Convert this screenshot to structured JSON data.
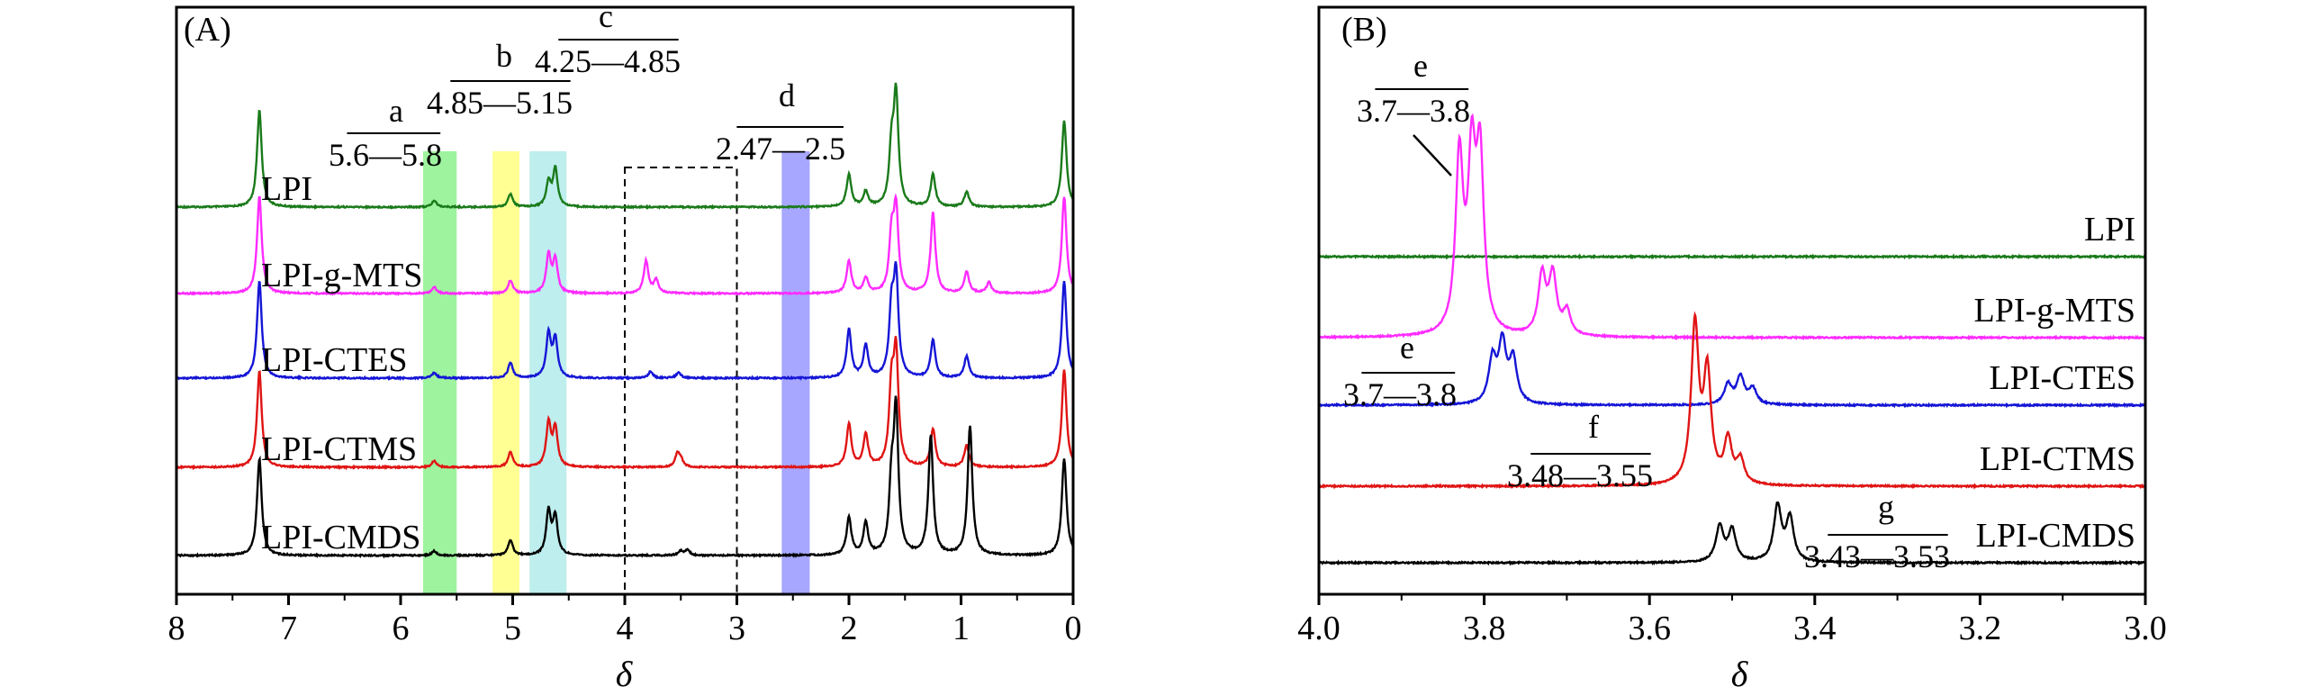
{
  "chart_data": [
    {
      "id": "A",
      "type": "line",
      "panel_label": "(A)",
      "xlabel": "δ",
      "ylabel": "",
      "xlim": [
        8,
        0
      ],
      "x_reversed": true,
      "x_ticks": [
        8,
        7,
        6,
        5,
        4,
        3,
        2,
        1,
        0
      ],
      "x_tick_labels": [
        "8",
        "7",
        "6",
        "5",
        "4",
        "3",
        "2",
        "1",
        "0"
      ],
      "series": [
        {
          "name": "LPI",
          "color": "#1a7a1a",
          "peaks": [
            [
              7.26,
              0.9
            ],
            [
              5.7,
              0.06
            ],
            [
              5.02,
              0.12
            ],
            [
              4.68,
              0.22
            ],
            [
              4.62,
              0.35
            ],
            [
              2.0,
              0.3
            ],
            [
              1.85,
              0.14
            ],
            [
              1.62,
              0.5
            ],
            [
              1.58,
              1.0
            ],
            [
              1.25,
              0.3
            ],
            [
              0.95,
              0.14
            ],
            [
              0.08,
              0.8
            ]
          ]
        },
        {
          "name": "LPI-g-MTS",
          "color": "#ff2bff",
          "peaks": [
            [
              7.26,
              0.9
            ],
            [
              5.7,
              0.06
            ],
            [
              5.02,
              0.12
            ],
            [
              4.68,
              0.35
            ],
            [
              4.62,
              0.3
            ],
            [
              3.81,
              0.3
            ],
            [
              3.72,
              0.12
            ],
            [
              2.0,
              0.3
            ],
            [
              1.85,
              0.14
            ],
            [
              1.62,
              0.5
            ],
            [
              1.58,
              0.75
            ],
            [
              1.25,
              0.75
            ],
            [
              0.95,
              0.2
            ],
            [
              0.75,
              0.1
            ],
            [
              0.08,
              0.9
            ]
          ]
        },
        {
          "name": "LPI-CTES",
          "color": "#1515d6",
          "peaks": [
            [
              7.26,
              0.9
            ],
            [
              5.7,
              0.05
            ],
            [
              5.02,
              0.14
            ],
            [
              4.68,
              0.4
            ],
            [
              4.62,
              0.35
            ],
            [
              3.77,
              0.06
            ],
            [
              3.52,
              0.05
            ],
            [
              2.0,
              0.45
            ],
            [
              1.85,
              0.3
            ],
            [
              1.62,
              0.6
            ],
            [
              1.58,
              0.9
            ],
            [
              1.25,
              0.35
            ],
            [
              0.95,
              0.2
            ],
            [
              0.08,
              0.9
            ]
          ]
        },
        {
          "name": "LPI-CTMS",
          "color": "#e01414",
          "peaks": [
            [
              7.26,
              0.9
            ],
            [
              5.7,
              0.06
            ],
            [
              5.02,
              0.14
            ],
            [
              4.68,
              0.4
            ],
            [
              4.62,
              0.35
            ],
            [
              3.53,
              0.12
            ],
            [
              3.5,
              0.06
            ],
            [
              2.0,
              0.4
            ],
            [
              1.85,
              0.3
            ],
            [
              1.62,
              0.7
            ],
            [
              1.58,
              1.0
            ],
            [
              1.25,
              0.35
            ],
            [
              0.95,
              0.2
            ],
            [
              0.08,
              0.9
            ]
          ]
        },
        {
          "name": "LPI-CMDS",
          "color": "#000000",
          "peaks": [
            [
              7.26,
              0.9
            ],
            [
              5.7,
              0.04
            ],
            [
              5.02,
              0.14
            ],
            [
              4.68,
              0.4
            ],
            [
              4.62,
              0.35
            ],
            [
              3.5,
              0.04
            ],
            [
              3.44,
              0.05
            ],
            [
              2.0,
              0.35
            ],
            [
              1.85,
              0.3
            ],
            [
              1.62,
              0.6
            ],
            [
              1.58,
              1.3
            ],
            [
              1.27,
              1.1
            ],
            [
              0.92,
              1.2
            ],
            [
              0.08,
              0.9
            ]
          ]
        }
      ],
      "regions": [
        {
          "letter": "a",
          "range_label": "5.6—5.8",
          "from": 5.8,
          "to": 5.5,
          "color": "#7df07d"
        },
        {
          "letter": "b",
          "range_label": "4.85—5.15",
          "from": 5.18,
          "to": 4.94,
          "color": "#ffff70"
        },
        {
          "letter": "c",
          "range_label": "4.25—4.85",
          "from": 4.85,
          "to": 4.52,
          "color": "#a8e8e8"
        },
        {
          "letter": "d",
          "range_label": "2.47—2.5",
          "from": 2.6,
          "to": 2.35,
          "color": "#8a8aff"
        }
      ],
      "dashed_box": {
        "from": 4.0,
        "to": 3.0
      }
    },
    {
      "id": "B",
      "type": "line",
      "panel_label": "(B)",
      "xlabel": "δ",
      "ylabel": "",
      "xlim": [
        4.0,
        3.0
      ],
      "x_reversed": true,
      "x_ticks": [
        4.0,
        3.8,
        3.6,
        3.4,
        3.2,
        3.0
      ],
      "x_tick_labels": [
        "4.0",
        "3.8",
        "3.6",
        "3.4",
        "3.2",
        "3.0"
      ],
      "series": [
        {
          "name": "LPI",
          "color": "#1a7a1a",
          "peaks": []
        },
        {
          "name": "LPI-g-MTS",
          "color": "#ff2bff",
          "peaks": [
            [
              3.83,
              0.88
            ],
            [
              3.815,
              0.82
            ],
            [
              3.805,
              0.85
            ],
            [
              3.73,
              0.3
            ],
            [
              3.717,
              0.3
            ],
            [
              3.7,
              0.12
            ]
          ]
        },
        {
          "name": "LPI-CTES",
          "color": "#1515d6",
          "peaks": [
            [
              3.79,
              0.22
            ],
            [
              3.778,
              0.3
            ],
            [
              3.765,
              0.22
            ],
            [
              3.505,
              0.1
            ],
            [
              3.49,
              0.14
            ],
            [
              3.475,
              0.08
            ]
          ]
        },
        {
          "name": "LPI-CTMS",
          "color": "#e01414",
          "peaks": [
            [
              3.545,
              0.8
            ],
            [
              3.53,
              0.55
            ],
            [
              3.505,
              0.22
            ],
            [
              3.49,
              0.12
            ]
          ]
        },
        {
          "name": "LPI-CMDS",
          "color": "#000000",
          "peaks": [
            [
              3.515,
              0.18
            ],
            [
              3.5,
              0.16
            ],
            [
              3.445,
              0.28
            ],
            [
              3.43,
              0.22
            ]
          ]
        }
      ],
      "annotations": [
        {
          "letter": "e",
          "range_label": "3.7—3.8",
          "target": "LPI-g-MTS"
        },
        {
          "letter": "e",
          "range_label": "3.7—3.8",
          "target": "LPI-CTES"
        },
        {
          "letter": "f",
          "range_label": "3.48—3.55",
          "target": "LPI-CTMS"
        },
        {
          "letter": "g",
          "range_label": "3.43—3.53",
          "target": "LPI-CMDS"
        }
      ]
    }
  ]
}
